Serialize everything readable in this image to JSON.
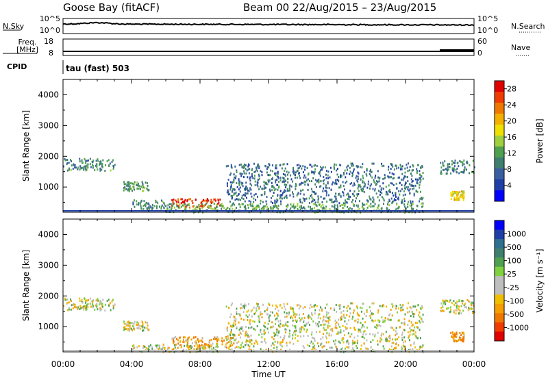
{
  "header": {
    "station": "Goose Bay (fitACF)",
    "beam_info": "Beam 00  22/Aug/2015 – 23/Aug/2015"
  },
  "strips": {
    "nsky_label": "N.Sky",
    "nsky_ticks": [
      "10^5",
      "10^0"
    ],
    "nsearch_label": "N.Search",
    "nsearch_ticks": [
      "10^5",
      "10^0"
    ],
    "freq_label_line1": "Freq.",
    "freq_label_line2": "[MHz]",
    "freq_ticks": [
      "18",
      "8"
    ],
    "nave_label": "Nave",
    "nave_ticks": [
      "60",
      "0"
    ],
    "cpid_label": "CPID",
    "cpid_text": "tau (fast) 503"
  },
  "colors": {
    "power_scale": [
      "#0000ff",
      "#1f3fa8",
      "#3a5fa0",
      "#3f7f70",
      "#4fa04f",
      "#9fd13f",
      "#f0e000",
      "#f3b000",
      "#f07800",
      "#f03c00",
      "#e00000"
    ],
    "velocity_scale": [
      "#0000ff",
      "#1f3fa8",
      "#2f6f8f",
      "#3f7f70",
      "#4fa04f",
      "#7fd13f",
      "#bebebe",
      "#bebebe",
      "#f0c000",
      "#f3a000",
      "#f07800",
      "#f03c00",
      "#e00000"
    ]
  },
  "chart_data": [
    {
      "type": "heatmap",
      "quantity": "Power",
      "ylabel": "Slant Range [km]",
      "xlabel": "Time UT",
      "x_ticks": [
        "00:00",
        "04:00",
        "08:00",
        "12:00",
        "16:00",
        "20:00",
        "00:00"
      ],
      "xlim_hours": [
        0,
        24
      ],
      "ylim_km": [
        180,
        4500
      ],
      "y_ticks": [
        "1000",
        "2000",
        "3000",
        "4000"
      ],
      "colorbar_label": "Power [dB]",
      "colorbar_ticks": [
        "4",
        "8",
        "12",
        "16",
        "20",
        "24",
        "28"
      ],
      "colorbar_range": [
        0,
        30
      ],
      "echo_regions": [
        {
          "t0": 0.0,
          "t1": 3.0,
          "r0": 1550,
          "r1": 1950,
          "value": 10
        },
        {
          "t0": 3.5,
          "t1": 5.0,
          "r0": 900,
          "r1": 1200,
          "value": 12
        },
        {
          "t0": 4.0,
          "t1": 6.0,
          "r0": 300,
          "r1": 600,
          "value": 10
        },
        {
          "t0": 6.3,
          "t1": 9.2,
          "r0": 350,
          "r1": 650,
          "value": 27
        },
        {
          "t0": 6.0,
          "t1": 21.0,
          "r0": 200,
          "r1": 500,
          "value": 12
        },
        {
          "t0": 9.5,
          "t1": 21.0,
          "r0": 500,
          "r1": 1800,
          "value": 8
        },
        {
          "t0": 22.0,
          "t1": 24.0,
          "r0": 1450,
          "r1": 1900,
          "value": 10
        },
        {
          "t0": 22.6,
          "t1": 23.4,
          "r0": 600,
          "r1": 900,
          "value": 18
        }
      ]
    },
    {
      "type": "heatmap",
      "quantity": "Velocity",
      "ylabel": "Slant Range [km]",
      "xlabel": "Time UT",
      "x_ticks": [
        "00:00",
        "04:00",
        "08:00",
        "12:00",
        "16:00",
        "20:00",
        "00:00"
      ],
      "xlim_hours": [
        0,
        24
      ],
      "ylim_km": [
        180,
        4500
      ],
      "y_ticks": [
        "1000",
        "2000",
        "3000",
        "4000"
      ],
      "colorbar_label": "Velocity [m s⁻¹]",
      "colorbar_ticks": [
        "1000",
        "500",
        "100",
        "25",
        "-25",
        "-100",
        "-500",
        "-1000"
      ],
      "echo_regions": [
        {
          "t0": 0.0,
          "t1": 3.0,
          "r0": 1550,
          "r1": 1950,
          "value": 0
        },
        {
          "t0": 3.5,
          "t1": 5.0,
          "r0": 900,
          "r1": 1200,
          "value": 0
        },
        {
          "t0": 6.3,
          "t1": 10.0,
          "r0": 350,
          "r1": 700,
          "value": -80
        },
        {
          "t0": 4.0,
          "t1": 9.0,
          "r0": 200,
          "r1": 450,
          "value": 0
        },
        {
          "t0": 9.5,
          "t1": 21.0,
          "r0": 200,
          "r1": 1800,
          "value": 0
        },
        {
          "t0": 22.0,
          "t1": 24.0,
          "r0": 1450,
          "r1": 1900,
          "value": 0
        },
        {
          "t0": 22.6,
          "t1": 23.4,
          "r0": 550,
          "r1": 850,
          "value": -90
        }
      ]
    }
  ]
}
